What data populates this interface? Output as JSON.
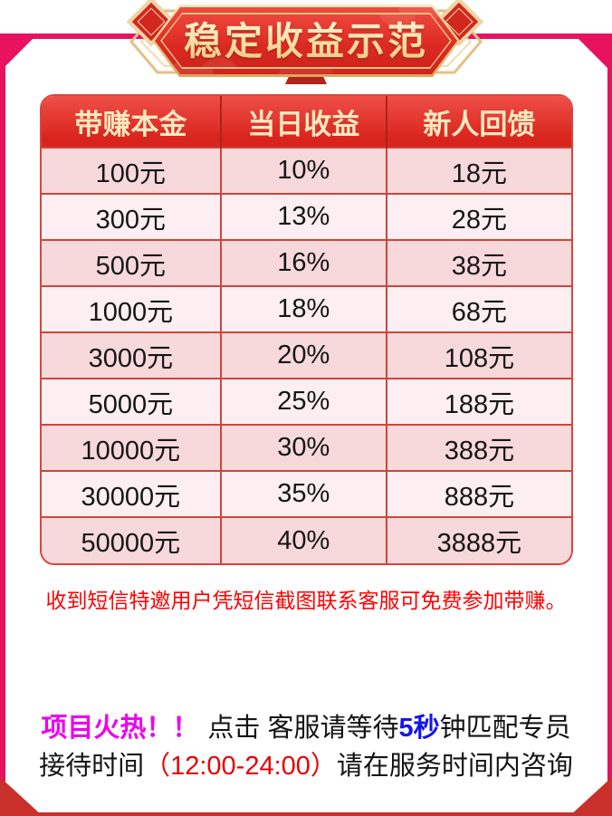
{
  "banner": {
    "title": "稳定收益示范"
  },
  "table": {
    "headers": [
      "带赚本金",
      "当日收益",
      "新人回馈"
    ],
    "rows": [
      [
        "100元",
        "10%",
        "18元"
      ],
      [
        "300元",
        "13%",
        "28元"
      ],
      [
        "500元",
        "16%",
        "38元"
      ],
      [
        "1000元",
        "18%",
        "68元"
      ],
      [
        "3000元",
        "20%",
        "108元"
      ],
      [
        "5000元",
        "25%",
        "188元"
      ],
      [
        "10000元",
        "30%",
        "388元"
      ],
      [
        "30000元",
        "35%",
        "888元"
      ],
      [
        "50000元",
        "40%",
        "3888元"
      ]
    ]
  },
  "notice": {
    "text": "收到短信特邀用户凭短信截图联系客服可免费参加带赚。"
  },
  "footer": {
    "line1": {
      "hot": "项目火热！！",
      "click": "点击 客服请等待",
      "seconds": "5秒",
      "rest": "钟匹配专员"
    },
    "line2": {
      "prefix": "接待时间",
      "time": "（12:00-24:00）",
      "suffix": "请在服务时间内咨询"
    }
  },
  "colors": {
    "frame_pink": "#E8125F",
    "banner_red": "#DC2A22",
    "banner_gold": "#ECC57E",
    "header_red": "#D8241D",
    "header_text_gold": "#FAE9BF",
    "row_pink": "#F7D8DB",
    "row_light_pink": "#FDEFF1",
    "table_line_red": "#CF453B",
    "notice_red": "#FF0000",
    "hot_magenta": "#EE00EE",
    "seconds_blue": "#1414F0",
    "time_red": "#E60202",
    "bottom_red": "#C9302C"
  }
}
